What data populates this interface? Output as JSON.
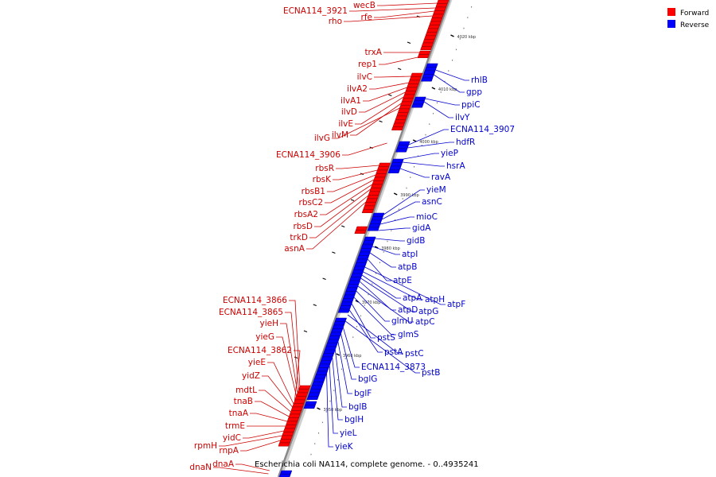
{
  "title": "Escherichia coli NA114, complete genome. - 0..4935241",
  "legend": [
    {
      "label": "Forward",
      "color": "#ff0000"
    },
    {
      "label": "Reverse",
      "color": "#0000ff"
    }
  ],
  "colors": {
    "forward": "#ff0000",
    "reverse": "#0000ff",
    "label_forward": "#cc0000",
    "label_reverse": "#0000cc",
    "backbone": "#888888"
  },
  "ticks": [
    {
      "kbp": 4020,
      "label": "4020 kbp"
    },
    {
      "kbp": 4010,
      "label": "4010 kbp"
    },
    {
      "kbp": 4000,
      "label": "4000 kbp"
    },
    {
      "kbp": 3990,
      "label": "3990 kbp"
    },
    {
      "kbp": 3980,
      "label": "3980 kbp"
    },
    {
      "kbp": 3970,
      "label": "3970 kbp"
    },
    {
      "kbp": 3960,
      "label": "3960 kbp"
    },
    {
      "kbp": 3950,
      "label": "3950 kbp"
    }
  ],
  "forward_genes": [
    "wecB",
    "ECNA114_3921",
    "rfe",
    "rho",
    "trxA",
    "rep1",
    "ilvC",
    "ilvA2",
    "ilvA1",
    "ilvD",
    "ilvE",
    "ilvM",
    "ilvG",
    "ECNA114_3906",
    "rbsR",
    "rbsK",
    "rbsB1",
    "rbsC2",
    "rbsA2",
    "rbsD",
    "trkD",
    "asnA",
    "ECNA114_3866",
    "ECNA114_3865",
    "yieH",
    "yieG",
    "ECNA114_3862",
    "yieE",
    "yidZ",
    "mdtL",
    "tnaB",
    "tnaA",
    "trmE",
    "yidC",
    "rpmH",
    "rnpA",
    "dnaN",
    "dnaA"
  ],
  "reverse_genes": [
    "rhlB",
    "gpp",
    "ppiC",
    "ilvY",
    "ECNA114_3907",
    "hdfR",
    "yieP",
    "hsrA",
    "ravA",
    "yieM",
    "asnC",
    "mioC",
    "gidA",
    "gidB",
    "atpI",
    "atpB",
    "atpE",
    "atpF",
    "atpH",
    "atpA",
    "atpG",
    "atpD",
    "atpC",
    "glmU",
    "glmS",
    "pstS",
    "pstA",
    "pstC",
    "pstB",
    "ECNA114_3873",
    "bglG",
    "bglF",
    "bglB",
    "bglH",
    "yieL",
    "yieK"
  ]
}
